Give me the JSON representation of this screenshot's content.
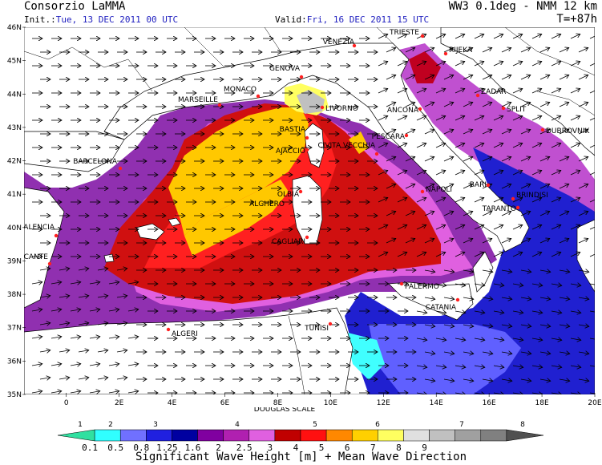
{
  "header": {
    "producer": "Consorzio LaMMA",
    "model": "WW3 0.1deg - NMM 12 km",
    "init_label": "Init.:",
    "init_value": "Tue, 13 DEC 2011   00 UTC",
    "valid_label": "Valid:",
    "valid_value": "Fri, 16 DEC 2011   15 UTC",
    "lead": "T=+87h"
  },
  "axes": {
    "lat_labels": [
      "46N",
      "45N",
      "44N",
      "43N",
      "42N",
      "41N",
      "40N",
      "39N",
      "38N",
      "37N",
      "36N",
      "35N"
    ],
    "lon_labels": [
      "0",
      "2E",
      "4E",
      "6E",
      "8E",
      "10E",
      "12E",
      "14E",
      "16E",
      "18E",
      "20E"
    ]
  },
  "cities": [
    {
      "name": "TRIESTE"
    },
    {
      "name": "VENEZIA"
    },
    {
      "name": "RIJEKA"
    },
    {
      "name": "GENOVA"
    },
    {
      "name": "MONACO"
    },
    {
      "name": "ZADAR"
    },
    {
      "name": "MARSEILLE"
    },
    {
      "name": "LIVORNO"
    },
    {
      "name": "ANCONA"
    },
    {
      "name": "SPLIT"
    },
    {
      "name": "BASTIA"
    },
    {
      "name": "DUBROVNIK"
    },
    {
      "name": "AJACCIO"
    },
    {
      "name": "PESCARA"
    },
    {
      "name": "CIVITA VECCHIA"
    },
    {
      "name": "BARCELONA"
    },
    {
      "name": "OLBIA"
    },
    {
      "name": "NAPOLI"
    },
    {
      "name": "BARI"
    },
    {
      "name": "BRINDISI"
    },
    {
      "name": "ALGHERO"
    },
    {
      "name": "TARANTO"
    },
    {
      "name": "VALENCIA"
    },
    {
      "name": "CAGLIARI"
    },
    {
      "name": "ALICANTE"
    },
    {
      "name": "PALERMO"
    },
    {
      "name": "CATANIA"
    },
    {
      "name": "ALGERI"
    },
    {
      "name": "TUNISI"
    }
  ],
  "scale": {
    "title": "DOUGLAS SCALE",
    "douglas": [
      "1",
      "2",
      "3",
      "4",
      "5",
      "6",
      "7",
      "8"
    ],
    "thresholds": [
      "0.1",
      "0.5",
      "0.8",
      "1.25",
      "1.6",
      "2",
      "2.5",
      "3",
      "4",
      "5",
      "6",
      "7",
      "8",
      "9"
    ],
    "colors": [
      "#30e0a0",
      "#30ffff",
      "#7070ff",
      "#2020e0",
      "#0000a0",
      "#8000a0",
      "#b020b0",
      "#e060e0",
      "#c00000",
      "#ff1010",
      "#ff8800",
      "#ffd000",
      "#ffff60",
      "#e0e0e0",
      "#c0c0c0",
      "#a0a0a0",
      "#808080",
      "#505050"
    ],
    "caption": "Significant Wave Height [m] + Mean Wave Direction"
  }
}
